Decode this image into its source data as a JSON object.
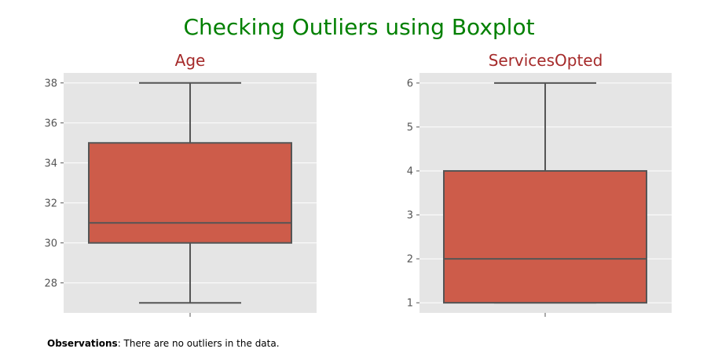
{
  "figure": {
    "suptitle": "Checking Outliers using Boxplot",
    "title_color": "#008000",
    "subtitle_color": "#a52a2a",
    "box_color": "#cd5c4a",
    "line_color": "#555555",
    "panel_bg": "#e5e5e5"
  },
  "observations": {
    "label": "Observations",
    "text": ": There are no outliers in the data."
  },
  "chart_data": [
    {
      "type": "boxplot",
      "title": "Age",
      "ylim": [
        26.5,
        38.5
      ],
      "yticks": [
        28,
        30,
        32,
        34,
        36,
        38
      ],
      "grid": true,
      "box": {
        "whisker_low": 27,
        "q1": 30,
        "median": 31,
        "q3": 35,
        "whisker_high": 38
      },
      "outliers": []
    },
    {
      "type": "boxplot",
      "title": "ServicesOpted",
      "ylim": [
        0.77,
        6.23
      ],
      "yticks": [
        1,
        2,
        3,
        4,
        5,
        6
      ],
      "grid": true,
      "box": {
        "whisker_low": 1,
        "q1": 1,
        "median": 2,
        "q3": 4,
        "whisker_high": 6
      },
      "outliers": []
    }
  ]
}
